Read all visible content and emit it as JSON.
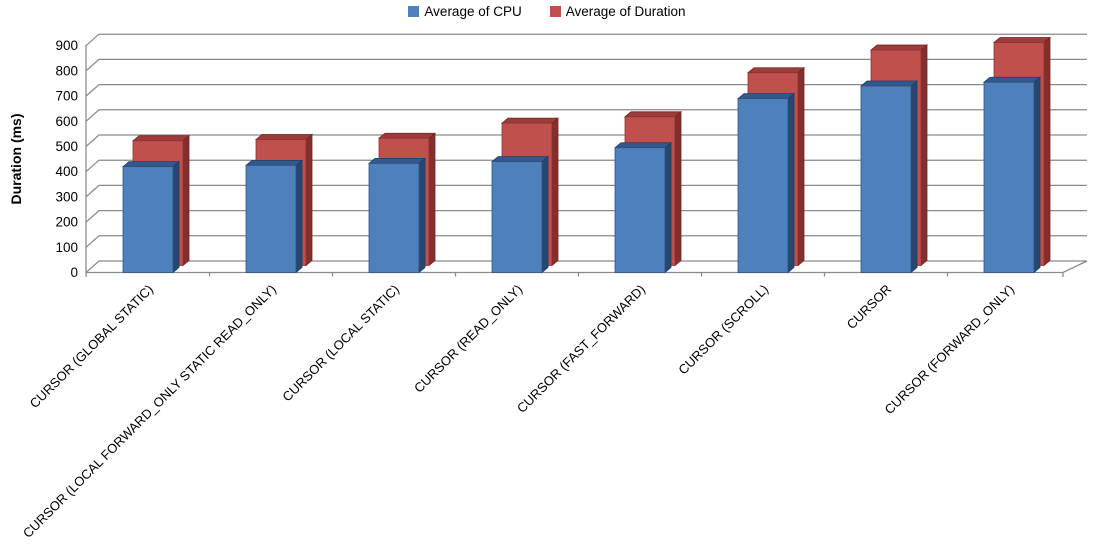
{
  "chart_data": {
    "type": "bar",
    "style": "3d-column-overlapped",
    "title": "",
    "xlabel": "",
    "ylabel": "Duration (ms)",
    "ylim": [
      0,
      900
    ],
    "ytick_step": 100,
    "grid": true,
    "legend_position": "top",
    "categories": [
      "CURSOR (GLOBAL STATIC)",
      "CURSOR (LOCAL FORWARD_ONLY STATIC READ_ONLY)",
      "CURSOR (LOCAL STATIC)",
      "CURSOR (READ_ONLY)",
      "CURSOR (FAST_FORWARD)",
      "CURSOR (SCROLL)",
      "CURSOR",
      "CURSOR (FORWARD_ONLY)"
    ],
    "series": [
      {
        "name": "Average of CPU",
        "color": "#4F81BD",
        "values": [
          420,
          425,
          433,
          440,
          495,
          690,
          740,
          755
        ]
      },
      {
        "name": "Average of Duration",
        "color": "#C0504D",
        "values": [
          495,
          500,
          505,
          565,
          590,
          765,
          855,
          885
        ]
      }
    ]
  }
}
